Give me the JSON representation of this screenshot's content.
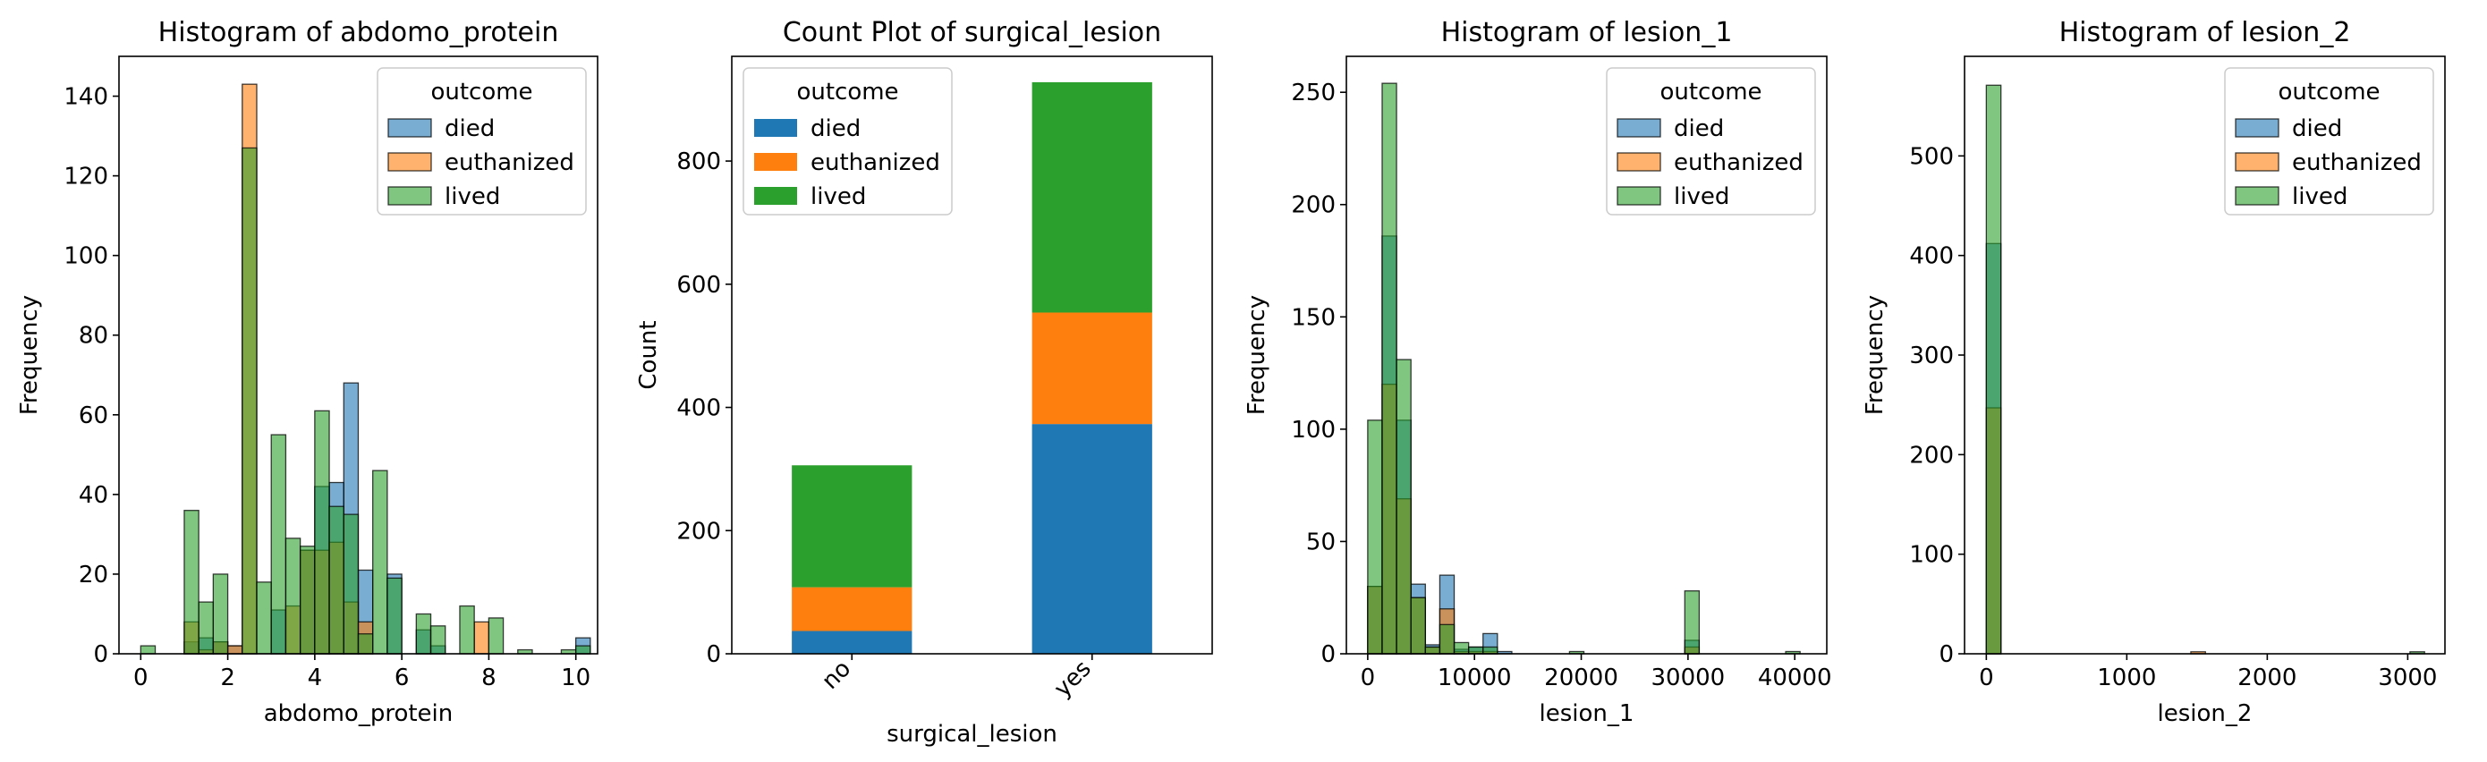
{
  "colors": {
    "died": "#1f77b4",
    "euthanized": "#ff7f0e",
    "lived": "#2ca02c"
  },
  "chart_data": [
    {
      "type": "histogram",
      "title": "Histogram of abdomo_protein",
      "xlabel": "abdomo_protein",
      "ylabel": "Frequency",
      "xlim": [
        -0.5,
        10.5
      ],
      "ylim": [
        0,
        150
      ],
      "xticks": [
        "0",
        "2",
        "4",
        "6",
        "8",
        "10"
      ],
      "yticks": [
        "0",
        "20",
        "40",
        "60",
        "80",
        "100",
        "120",
        "140"
      ],
      "bin_start": 0,
      "bin_width": 0.3333,
      "legend": {
        "title": "outcome",
        "entries": [
          "died",
          "euthanized",
          "lived"
        ],
        "position": "upper right"
      },
      "series": [
        {
          "name": "died",
          "values": [
            0,
            0,
            0,
            3,
            4,
            3,
            2,
            0,
            0,
            11,
            0,
            26,
            42,
            43,
            68,
            21,
            0,
            20,
            0,
            6,
            2,
            0,
            0,
            0,
            0,
            0,
            0,
            0,
            0,
            0,
            4
          ]
        },
        {
          "name": "euthanized",
          "values": [
            0,
            0,
            0,
            8,
            1,
            3,
            2,
            143,
            0,
            0,
            12,
            26,
            26,
            28,
            13,
            8,
            0,
            0,
            0,
            0,
            0,
            0,
            0,
            8,
            0,
            0,
            0,
            0,
            0,
            0,
            0
          ]
        },
        {
          "name": "lived",
          "values": [
            2,
            0,
            0,
            36,
            13,
            20,
            0,
            127,
            18,
            55,
            29,
            27,
            61,
            37,
            35,
            5,
            46,
            19,
            0,
            10,
            7,
            0,
            12,
            0,
            9,
            0,
            1,
            0,
            0,
            1,
            2
          ]
        }
      ]
    },
    {
      "type": "bar",
      "stacked": true,
      "title": "Count Plot of surgical_lesion",
      "xlabel": "surgical_lesion",
      "ylabel": "Count",
      "categories": [
        "no",
        "yes"
      ],
      "ylim": [
        0,
        970
      ],
      "yticks": [
        "0",
        "200",
        "400",
        "600",
        "800"
      ],
      "legend": {
        "title": "outcome",
        "entries": [
          "died",
          "euthanized",
          "lived"
        ],
        "position": "upper left"
      },
      "series": [
        {
          "name": "died",
          "values": [
            37,
            373
          ]
        },
        {
          "name": "euthanized",
          "values": [
            71,
            181
          ]
        },
        {
          "name": "lived",
          "values": [
            198,
            374
          ]
        }
      ]
    },
    {
      "type": "histogram",
      "title": "Histogram of lesion_1",
      "xlabel": "lesion_1",
      "ylabel": "Frequency",
      "xlim": [
        -2000,
        43000
      ],
      "ylim": [
        0,
        266
      ],
      "xticks": [
        "0",
        "10000",
        "20000",
        "30000",
        "40000"
      ],
      "yticks": [
        "0",
        "50",
        "100",
        "150",
        "200",
        "250"
      ],
      "bin_start": 0,
      "bin_width": 1350,
      "legend": {
        "title": "outcome",
        "entries": [
          "died",
          "euthanized",
          "lived"
        ],
        "position": "upper right"
      },
      "series": [
        {
          "name": "died",
          "values": [
            30,
            186,
            104,
            31,
            4,
            35,
            2,
            3,
            9,
            1,
            0,
            0,
            0,
            0,
            0,
            0,
            0,
            0,
            0,
            0,
            0,
            0,
            6,
            0,
            0,
            0,
            0,
            0,
            0,
            0
          ]
        },
        {
          "name": "euthanized",
          "values": [
            30,
            120,
            69,
            25,
            3,
            20,
            1,
            1,
            1,
            0,
            0,
            0,
            0,
            0,
            0,
            0,
            0,
            0,
            0,
            0,
            0,
            0,
            3,
            0,
            0,
            0,
            0,
            0,
            0,
            0
          ]
        },
        {
          "name": "lived",
          "values": [
            104,
            254,
            131,
            25,
            3,
            13,
            5,
            3,
            3,
            0,
            0,
            0,
            0,
            0,
            1,
            0,
            0,
            0,
            0,
            0,
            0,
            0,
            28,
            0,
            0,
            0,
            0,
            0,
            0,
            1
          ]
        }
      ]
    },
    {
      "type": "histogram",
      "title": "Histogram of lesion_2",
      "xlabel": "lesion_2",
      "ylabel": "Frequency",
      "xlim": [
        -155,
        3265
      ],
      "ylim": [
        0,
        600
      ],
      "xticks": [
        "0",
        "1000",
        "2000",
        "3000"
      ],
      "yticks": [
        "0",
        "100",
        "200",
        "300",
        "400",
        "500"
      ],
      "bin_start": 0,
      "bin_width": 104,
      "legend": {
        "title": "outcome",
        "entries": [
          "died",
          "euthanized",
          "lived"
        ],
        "position": "upper right"
      },
      "series": [
        {
          "name": "died",
          "values": [
            412,
            0,
            0,
            0,
            0,
            0,
            0,
            0,
            0,
            0,
            0,
            0,
            0,
            0,
            0,
            0,
            0,
            0,
            0,
            0,
            0,
            0,
            0,
            0,
            0,
            0,
            0,
            0,
            0,
            0
          ]
        },
        {
          "name": "euthanized",
          "values": [
            247,
            0,
            0,
            0,
            0,
            0,
            0,
            0,
            0,
            0,
            0,
            0,
            0,
            0,
            2,
            0,
            0,
            0,
            0,
            0,
            0,
            0,
            0,
            0,
            0,
            0,
            0,
            0,
            0,
            0
          ]
        },
        {
          "name": "lived",
          "values": [
            571,
            0,
            0,
            0,
            0,
            0,
            0,
            0,
            0,
            0,
            0,
            0,
            0,
            0,
            0,
            0,
            0,
            0,
            0,
            0,
            0,
            0,
            0,
            0,
            0,
            0,
            0,
            0,
            0,
            2
          ]
        }
      ]
    }
  ]
}
